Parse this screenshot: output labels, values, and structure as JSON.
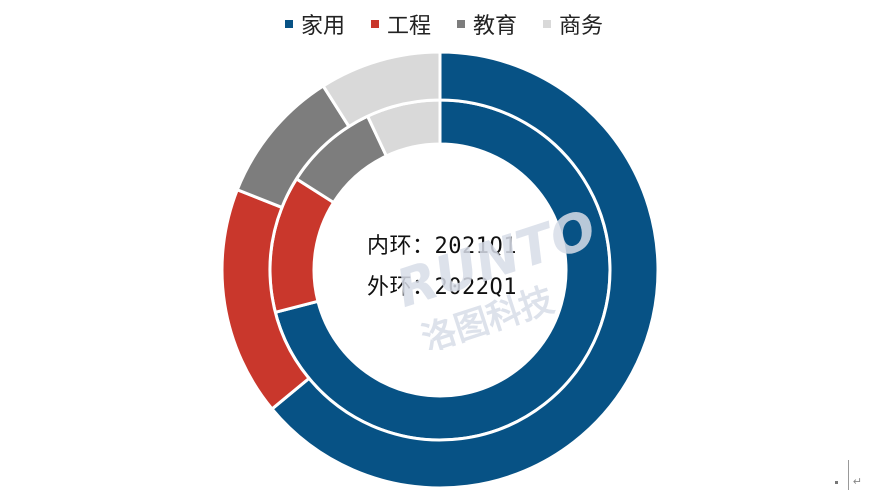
{
  "chart_data": {
    "type": "pie",
    "subtype": "nested-donut",
    "categories": [
      "家用",
      "工程",
      "教育",
      "商务"
    ],
    "colors": [
      "#075285",
      "#c9372c",
      "#7d7d7d",
      "#d9d9d9"
    ],
    "series": [
      {
        "name": "2021Q1",
        "ring": "inner",
        "values": [
          71,
          13,
          9,
          7
        ]
      },
      {
        "name": "2022Q1",
        "ring": "outer",
        "values": [
          64,
          17,
          10,
          9
        ]
      }
    ],
    "legend": "top",
    "center_labels": [
      "内环：2021Q1",
      "外环：2022Q1"
    ]
  },
  "watermark": {
    "text_top": "RUNTO",
    "text_bottom": "洛图科技"
  },
  "corner_mark": "↵"
}
